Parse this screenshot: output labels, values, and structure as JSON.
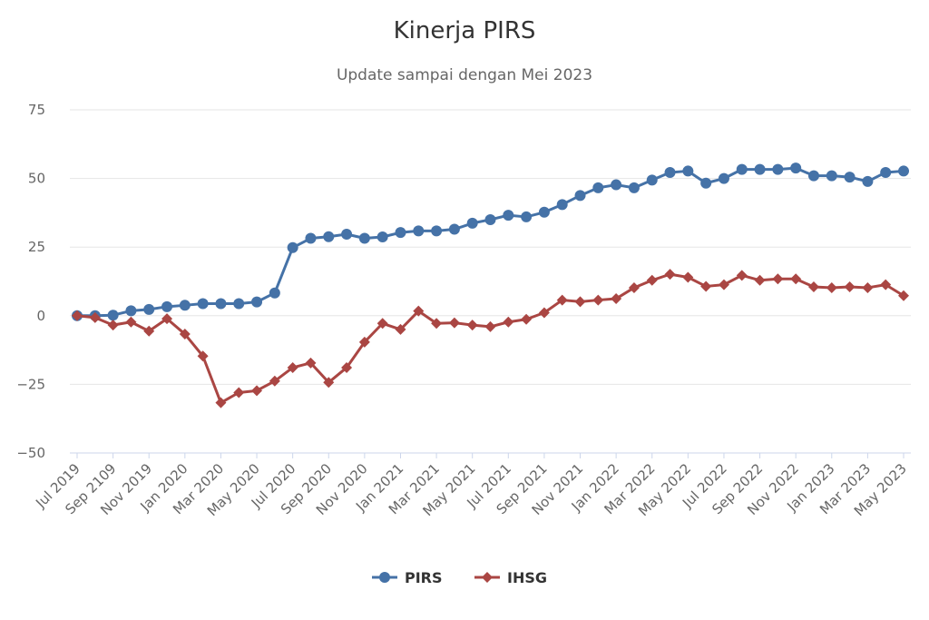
{
  "chart_data": {
    "type": "line",
    "title": "Kinerja PIRS",
    "subtitle": "Update sampai dengan Mei 2023",
    "xlabel": "",
    "ylabel": "",
    "ylim": [
      -50,
      75
    ],
    "yticks": [
      75,
      50,
      25,
      0,
      -25,
      -50
    ],
    "ytick_labels": [
      "75",
      "50",
      "25",
      "0",
      "−25",
      "−50"
    ],
    "x": [
      "Jul 2019",
      "Aug 2019",
      "Sep 2109",
      "Oct 2019",
      "Nov 2019",
      "Dec 2019",
      "Jan 2020",
      "Feb 2020",
      "Mar 2020",
      "Apr 2020",
      "May 2020",
      "Jun 2020",
      "Jul 2020",
      "Aug 2020",
      "Sep 2020",
      "Oct 2020",
      "Nov 2020",
      "Dec 2020",
      "Jan 2021",
      "Feb 2021",
      "Mar 2021",
      "Apr 2021",
      "May 2021",
      "Jun 2021",
      "Jul 2021",
      "Aug 2021",
      "Sep 2021",
      "Oct 2021",
      "Nov 2021",
      "Dec 2021",
      "Jan 2022",
      "Feb 2022",
      "Mar 2022",
      "Apr 2022",
      "May 2022",
      "Jun 2022",
      "Jul 2022",
      "Aug 2022",
      "Sep 2022",
      "Oct 2022",
      "Nov 2022",
      "Dec 2022",
      "Jan 2023",
      "Feb 2023",
      "Mar 2023",
      "Apr 2023",
      "May 2023"
    ],
    "x_tick_labels": [
      "Jul 2019",
      "Sep 2109",
      "Nov 2019",
      "Jan 2020",
      "Mar 2020",
      "May 2020",
      "Jul 2020",
      "Sep 2020",
      "Nov 2020",
      "Jan 2021",
      "Mar 2021",
      "May 2021",
      "Jul 2021",
      "Sep 2021",
      "Nov 2021",
      "Jan 2022",
      "Mar 2022",
      "May 2022",
      "Jul 2022",
      "Sep 2022",
      "Nov 2022",
      "Jan 2023",
      "Mar 2023",
      "May 2023"
    ],
    "grid": true,
    "legend_position": "bottom-center",
    "series": [
      {
        "name": "PIRS",
        "color": "#4572a7",
        "marker": "circle",
        "values": [
          0.0,
          0.0,
          0.2,
          1.8,
          2.3,
          3.3,
          3.8,
          4.4,
          4.4,
          4.4,
          5.0,
          8.3,
          24.8,
          28.2,
          28.8,
          29.7,
          28.2,
          28.7,
          30.3,
          30.9,
          30.9,
          31.5,
          33.7,
          35.0,
          36.6,
          36.0,
          37.7,
          40.5,
          43.8,
          46.6,
          47.7,
          46.6,
          49.4,
          52.2,
          52.7,
          48.3,
          50.0,
          53.3,
          53.3,
          53.3,
          53.8,
          51.0,
          51.0,
          50.5,
          48.9,
          52.2,
          52.7
        ]
      },
      {
        "name": "IHSG",
        "color": "#aa4643",
        "marker": "diamond",
        "values": [
          0.0,
          -0.7,
          -3.4,
          -2.3,
          -5.6,
          -1.1,
          -6.7,
          -14.7,
          -31.7,
          -28.0,
          -27.3,
          -23.8,
          -18.9,
          -17.2,
          -24.3,
          -18.9,
          -9.6,
          -2.8,
          -5.0,
          1.7,
          -2.8,
          -2.6,
          -3.4,
          -4.0,
          -2.3,
          -1.3,
          1.1,
          5.7,
          5.1,
          5.7,
          6.2,
          10.2,
          12.9,
          15.1,
          14.0,
          10.7,
          11.3,
          14.7,
          12.9,
          13.4,
          13.4,
          10.5,
          10.2,
          10.5,
          10.2,
          11.3,
          7.3
        ]
      }
    ]
  }
}
